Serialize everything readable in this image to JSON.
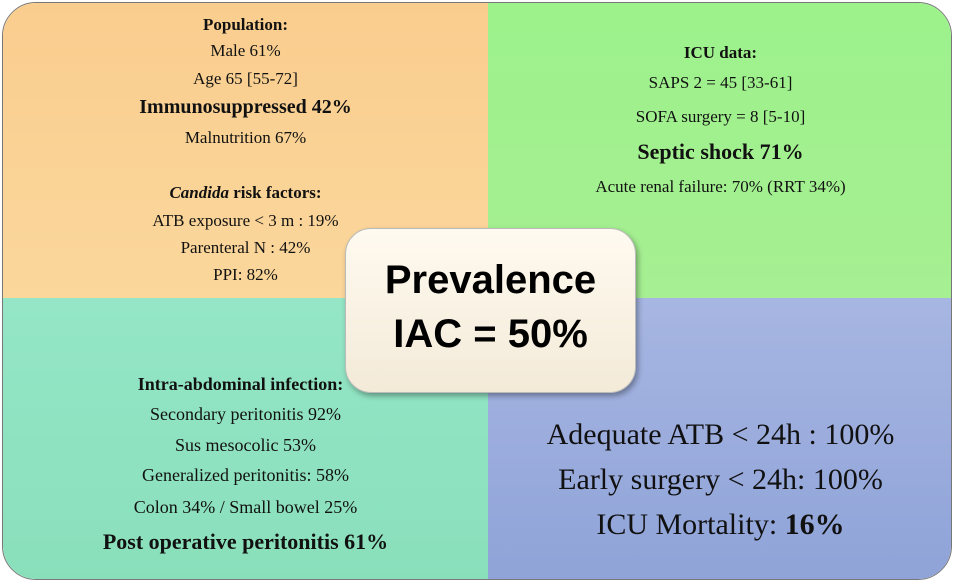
{
  "population": {
    "title": "Population:",
    "lines": [
      "Male 61%",
      "Age 65 [55-72]"
    ],
    "highlight": "Immunosuppressed 42%",
    "after": [
      "Malnutrition 67%"
    ],
    "risk_title_italic": "Candida",
    "risk_title_rest": " risk factors:",
    "risk_lines": [
      "ATB exposure < 3 m : 19%",
      "Parenteral N : 42%",
      "PPI: 82%"
    ]
  },
  "icu": {
    "title": "ICU data:",
    "lines": [
      "SAPS 2 = 45 [33-61]",
      "SOFA surgery = 8 [5-10]"
    ],
    "highlight": "Septic shock 71%",
    "after": [
      "Acute renal failure: 70% (RRT 34%)"
    ]
  },
  "infection": {
    "title": "Intra-abdominal infection:",
    "lines": [
      "Secondary peritonitis 92%",
      "Sus mesocolic 53%",
      "Generalized peritonitis: 58%",
      "Colon 34% / Small bowel 25%"
    ],
    "highlight": "Post operative peritonitis 61%"
  },
  "outcomes": {
    "lines": [
      "Adequate ATB < 24h : 100%",
      "Early surgery < 24h: 100%"
    ],
    "mortality_label": "ICU Mortality: ",
    "mortality_value": "16%"
  },
  "center": {
    "line1": "Prevalence",
    "line2": "IAC = 50%"
  }
}
